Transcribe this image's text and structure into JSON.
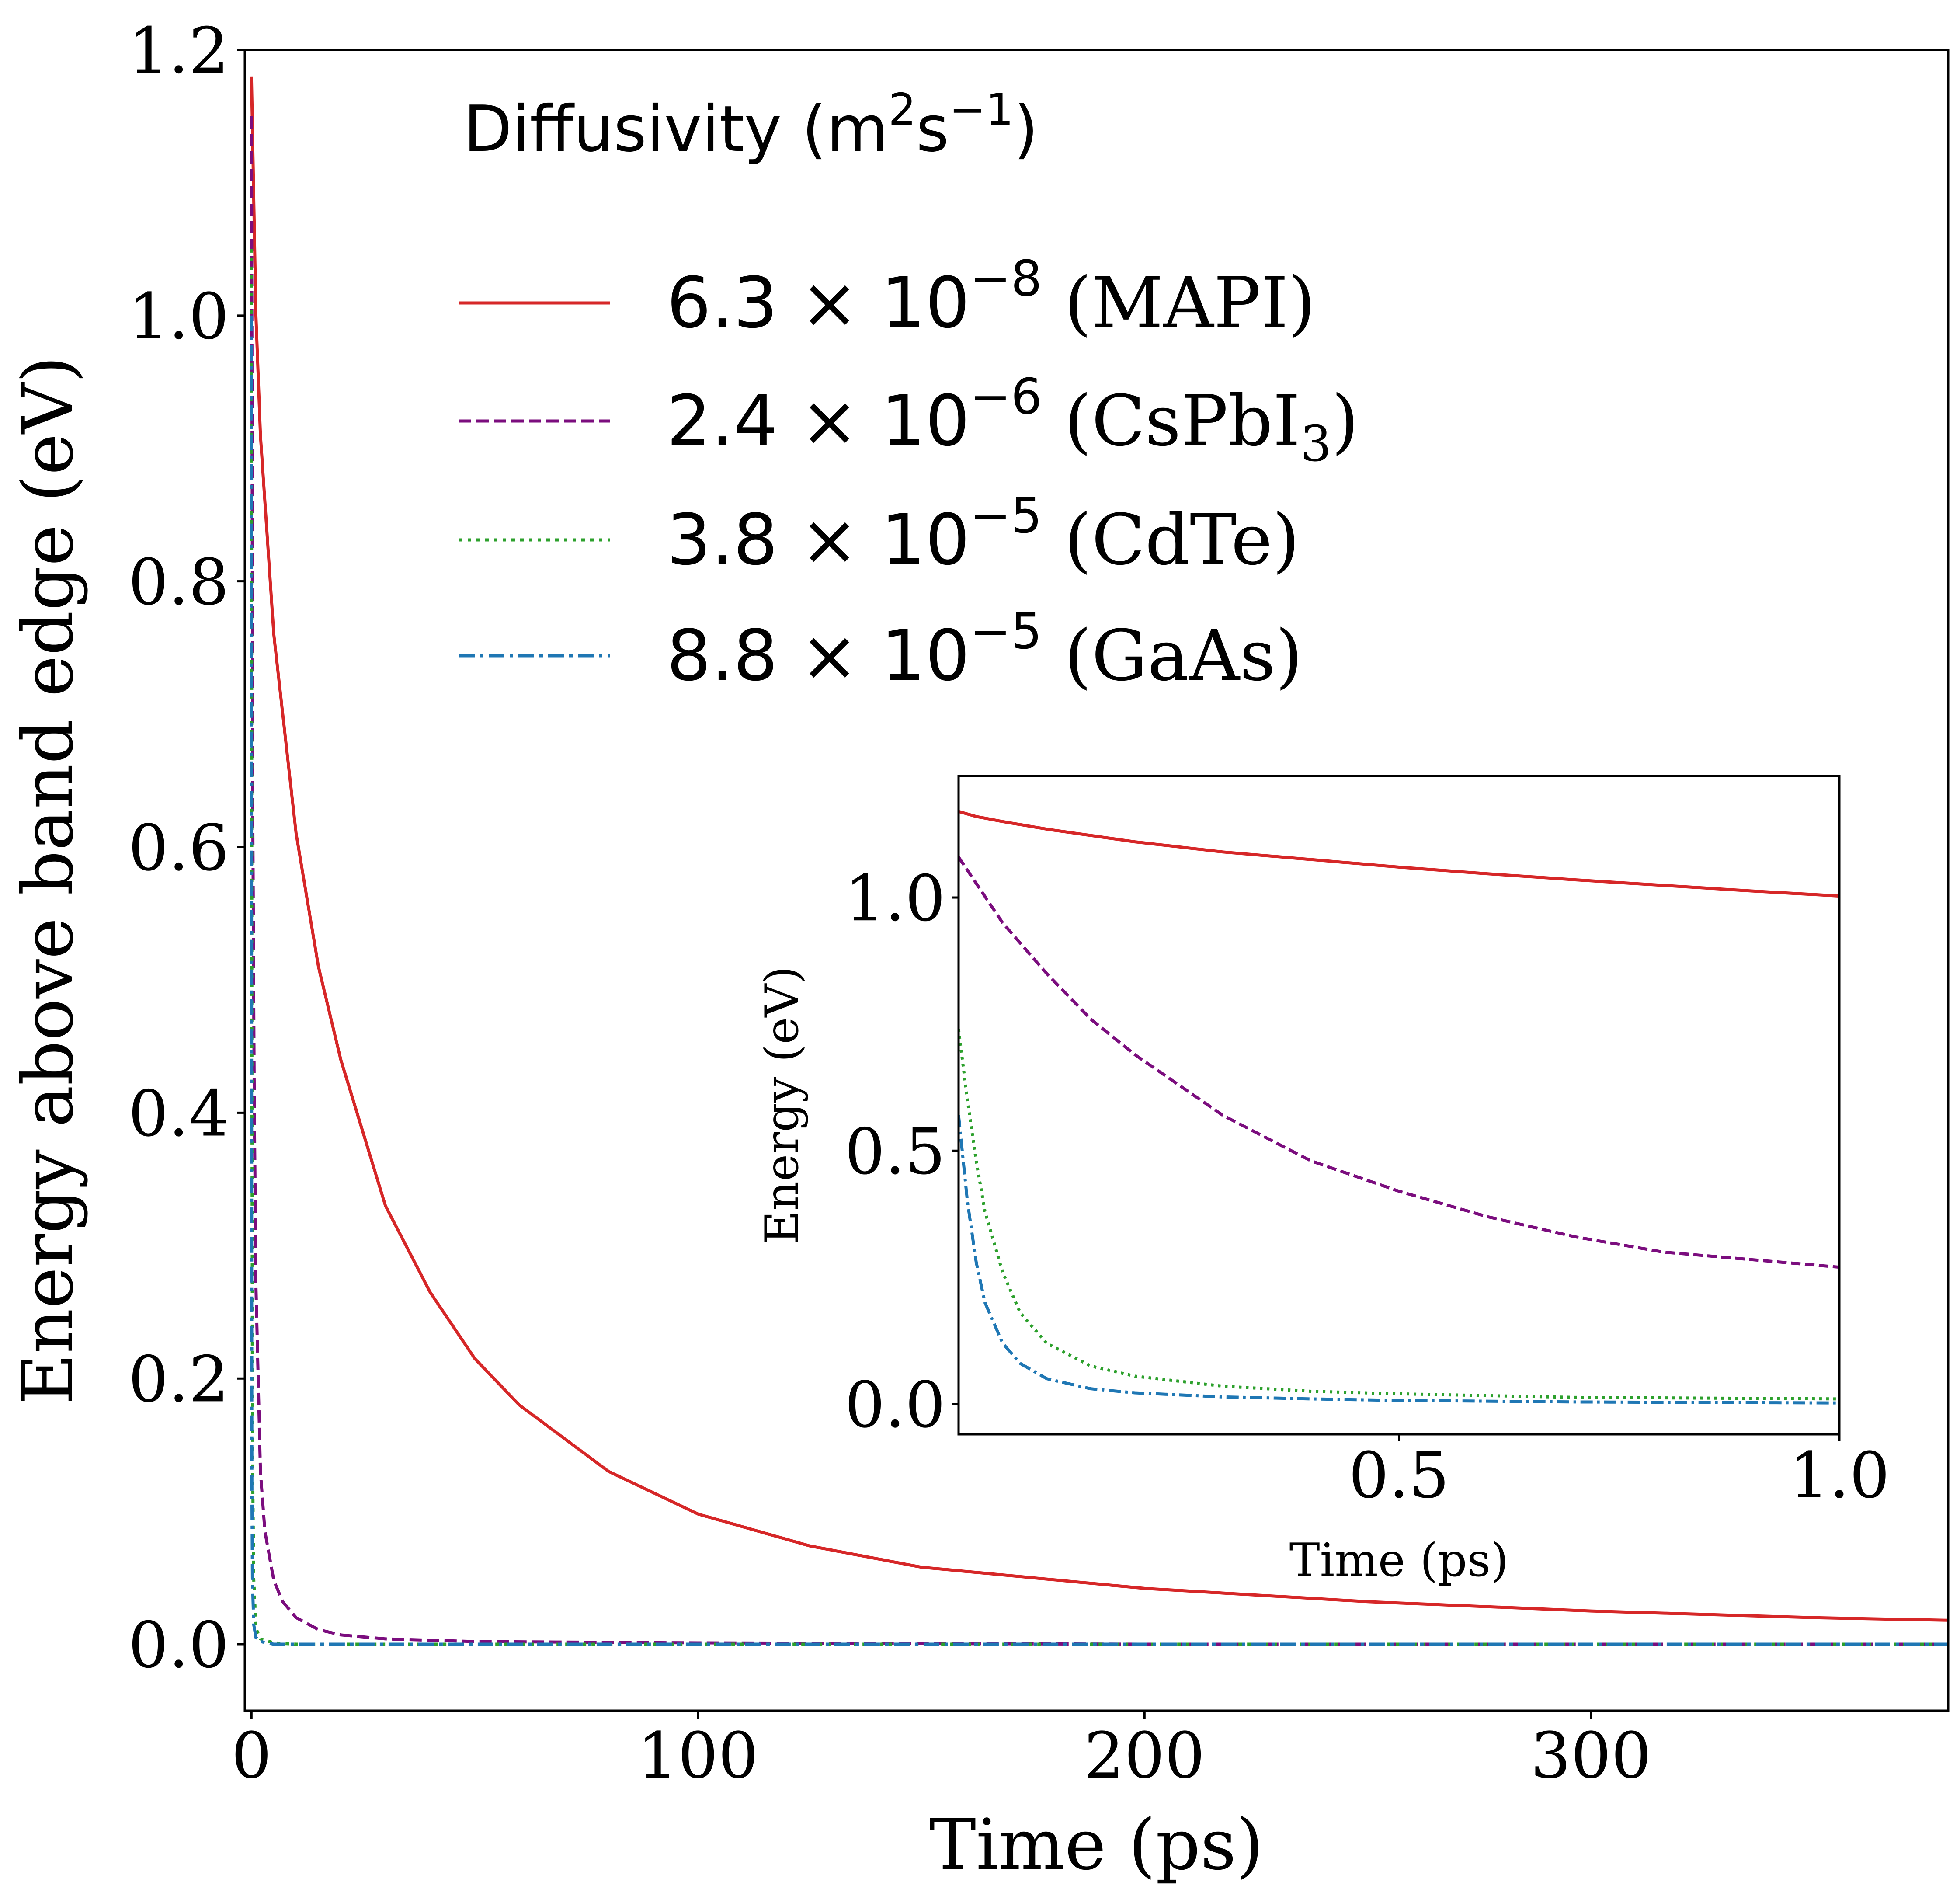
{
  "chart_data": [
    {
      "type": "line",
      "title": "",
      "xlabel": "Time (ps)",
      "ylabel": "Energy above band edge (eV)",
      "xlim": [
        -1.5,
        380
      ],
      "ylim": [
        -0.05,
        1.2
      ],
      "xticks": [
        0,
        100,
        200,
        300
      ],
      "xtick_labels": [
        "0",
        "100",
        "200",
        "300"
      ],
      "yticks": [
        0.0,
        0.2,
        0.4,
        0.6,
        0.8,
        1.0,
        1.2
      ],
      "ytick_labels": [
        "0.0",
        "0.2",
        "0.4",
        "0.6",
        "0.8",
        "1.0",
        "1.2"
      ],
      "grid": false,
      "legend": {
        "title": "Diffusivity (m",
        "title_sup1": "2",
        "title_mid": "s",
        "title_sup2": "−1",
        "title_end": ")",
        "placement": "top-center"
      },
      "series": [
        {
          "name": "MAPI",
          "label": {
            "mantissa": "6.3",
            "times": "×",
            "base": "10",
            "exponent": "−8",
            "material": "(MAPI)",
            "sub": ""
          },
          "color": "#d62728",
          "dash": "solid",
          "x": [
            0,
            1,
            2,
            5,
            10,
            15,
            20,
            30,
            40,
            50,
            60,
            80,
            100,
            125,
            150,
            200,
            250,
            300,
            350,
            380
          ],
          "y": [
            1.18,
            1.0,
            0.91,
            0.76,
            0.61,
            0.51,
            0.44,
            0.33,
            0.265,
            0.215,
            0.18,
            0.13,
            0.098,
            0.074,
            0.058,
            0.042,
            0.032,
            0.025,
            0.02,
            0.018
          ]
        },
        {
          "name": "CsPbI3",
          "label": {
            "mantissa": "2.4",
            "times": "×",
            "base": "10",
            "exponent": "−6",
            "material": "(CsPbI",
            "sub": "3",
            "close": ")"
          },
          "color": "#7b0d7e",
          "dash": "dashed",
          "x": [
            0,
            0.3,
            0.6,
            1,
            2,
            3,
            5,
            7,
            10,
            15,
            20,
            30,
            50,
            100,
            200,
            380
          ],
          "y": [
            1.15,
            0.62,
            0.42,
            0.27,
            0.13,
            0.085,
            0.048,
            0.032,
            0.02,
            0.011,
            0.007,
            0.004,
            0.002,
            0.001,
            0.0,
            0.0
          ]
        },
        {
          "name": "CdTe",
          "label": {
            "mantissa": "3.8",
            "times": "×",
            "base": "10",
            "exponent": "−5",
            "material": "(CdTe)",
            "sub": ""
          },
          "color": "#2ca02c",
          "dash": "dotted",
          "x": [
            0,
            0.1,
            0.2,
            0.3,
            0.5,
            1,
            2,
            5,
            10,
            380
          ],
          "y": [
            1.05,
            0.45,
            0.2,
            0.12,
            0.05,
            0.012,
            0.004,
            0.001,
            0.0,
            0.0
          ]
        },
        {
          "name": "GaAs",
          "label": {
            "mantissa": "8.8",
            "times": "×",
            "base": "10",
            "exponent": "−5",
            "material": "(GaAs)",
            "sub": ""
          },
          "color": "#1f77b4",
          "dash": "dashdot",
          "x": [
            0,
            0.05,
            0.1,
            0.2,
            0.5,
            1,
            2,
            5,
            380
          ],
          "y": [
            1.0,
            0.3,
            0.12,
            0.05,
            0.015,
            0.005,
            0.002,
            0.0,
            0.0
          ]
        }
      ]
    },
    {
      "type": "line",
      "title": "",
      "xlabel": "Time (ps)",
      "ylabel": "Energy (eV)",
      "xlim": [
        0,
        1.0
      ],
      "ylim": [
        -0.06,
        1.24
      ],
      "xticks": [
        0.5,
        1.0
      ],
      "xtick_labels": [
        "0.5",
        "1.0"
      ],
      "yticks": [
        0.0,
        0.5,
        1.0
      ],
      "ytick_labels": [
        "0.0",
        "0.5",
        "1.0"
      ],
      "grid": false,
      "series": [
        {
          "color": "#d62728",
          "dash": "solid",
          "x": [
            0,
            0.02,
            0.05,
            0.1,
            0.2,
            0.3,
            0.4,
            0.5,
            0.6,
            0.7,
            0.8,
            0.9,
            1.0
          ],
          "y": [
            1.17,
            1.16,
            1.15,
            1.135,
            1.11,
            1.09,
            1.075,
            1.06,
            1.047,
            1.035,
            1.024,
            1.013,
            1.003
          ]
        },
        {
          "color": "#7b0d7e",
          "dash": "dashed",
          "x": [
            0,
            0.05,
            0.1,
            0.15,
            0.2,
            0.3,
            0.4,
            0.5,
            0.6,
            0.7,
            0.8,
            0.9,
            1.0
          ],
          "y": [
            1.08,
            0.95,
            0.85,
            0.76,
            0.69,
            0.57,
            0.48,
            0.42,
            0.37,
            0.33,
            0.3,
            0.285,
            0.27
          ]
        },
        {
          "color": "#2ca02c",
          "dash": "dotted",
          "x": [
            0,
            0.01,
            0.02,
            0.03,
            0.05,
            0.07,
            0.1,
            0.15,
            0.2,
            0.3,
            0.4,
            0.5,
            0.7,
            1.0
          ],
          "y": [
            0.74,
            0.6,
            0.48,
            0.38,
            0.26,
            0.18,
            0.12,
            0.075,
            0.055,
            0.035,
            0.025,
            0.02,
            0.013,
            0.01
          ]
        },
        {
          "color": "#1f77b4",
          "dash": "dashdot",
          "x": [
            0,
            0.01,
            0.02,
            0.03,
            0.05,
            0.07,
            0.1,
            0.15,
            0.2,
            0.3,
            0.4,
            0.5,
            0.7,
            1.0
          ],
          "y": [
            0.57,
            0.4,
            0.28,
            0.2,
            0.12,
            0.08,
            0.05,
            0.03,
            0.022,
            0.014,
            0.01,
            0.007,
            0.004,
            0.002
          ]
        }
      ]
    }
  ]
}
